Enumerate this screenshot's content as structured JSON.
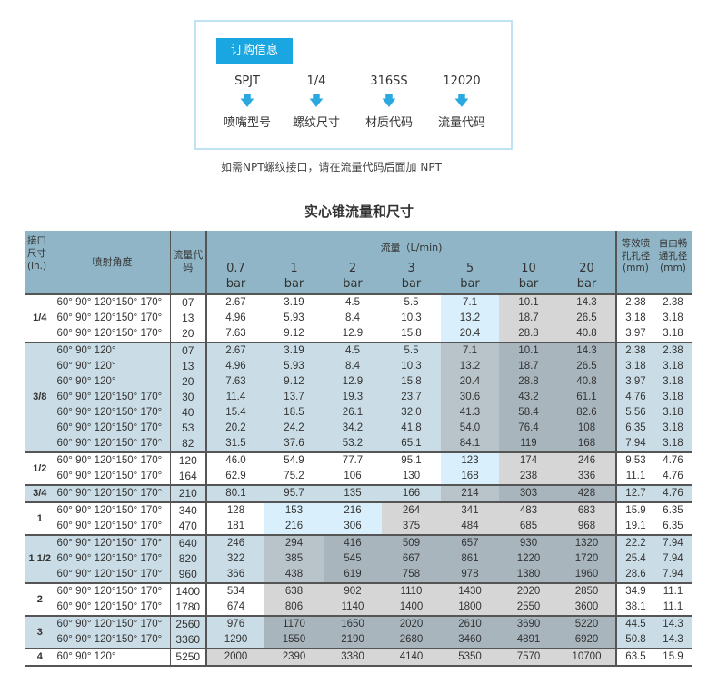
{
  "order": {
    "tag": "订购信息",
    "items": [
      {
        "code": "SPJT",
        "label": "喷嘴型号"
      },
      {
        "code": "1/4",
        "label": "螺纹尺寸"
      },
      {
        "code": "316SS",
        "label": "材质代码"
      },
      {
        "code": "12020",
        "label": "流量代码"
      }
    ],
    "arrow_icon": "arrow-down",
    "note": "如需NPT螺纹接口，请在流量代码后面加 NPT"
  },
  "title": "实心锥流量和尺寸",
  "colors": {
    "header": "#8fb5c6",
    "white": "#ffffff",
    "band": "#cadde6",
    "light_blue": "#d9effb",
    "gray": "#d6d6d6",
    "band_mid": "#b9c3ca",
    "band_dark": "#a8b5bd",
    "accent": "#1aa6e0"
  },
  "table": {
    "headers": {
      "size": "接口尺寸(in.)",
      "angle": "喷射角度",
      "code": "流量代码",
      "flow": "流量（L/min)",
      "pressures": [
        "0.7",
        "1",
        "2",
        "3",
        "5",
        "10",
        "20"
      ],
      "bar": "bar",
      "orifice": "等效喷孔孔径(mm)",
      "free": "自由畅通孔径(mm)"
    },
    "groups": [
      {
        "size": "1/4",
        "band": false,
        "shade": [
          "white",
          "white",
          "white",
          "white",
          "light_blue",
          "gray",
          "gray"
        ],
        "rows": [
          {
            "angle": "60° 90° 120°150° 170°",
            "code": "07",
            "flows": [
              "2.67",
              "3.19",
              "4.5",
              "5.5",
              "7.1",
              "10.1",
              "14.3"
            ],
            "orifice": "2.38",
            "free": "2.38"
          },
          {
            "angle": "60° 90° 120°150° 170°",
            "code": "13",
            "flows": [
              "4.96",
              "5.93",
              "8.4",
              "10.3",
              "13.2",
              "18.7",
              "26.5"
            ],
            "orifice": "3.18",
            "free": "3.18"
          },
          {
            "angle": "60° 90° 120°150° 170°",
            "code": "20",
            "flows": [
              "7.63",
              "9.12",
              "12.9",
              "15.8",
              "20.4",
              "28.8",
              "40.8"
            ],
            "orifice": "3.97",
            "free": "3.18"
          }
        ]
      },
      {
        "size": "3/8",
        "band": true,
        "shade": [
          "band",
          "band",
          "band",
          "band",
          "band_mid",
          "band_dark",
          "band_dark"
        ],
        "rows": [
          {
            "angle": "60°  90° 120°",
            "code": "07",
            "flows": [
              "2.67",
              "3.19",
              "4.5",
              "5.5",
              "7.1",
              "10.1",
              "14.3"
            ],
            "orifice": "2.38",
            "free": "2.38"
          },
          {
            "angle": "60°  90° 120°",
            "code": "13",
            "flows": [
              "4.96",
              "5.93",
              "8.4",
              "10.3",
              "13.2",
              "18.7",
              "26.5"
            ],
            "orifice": "3.18",
            "free": "3.18"
          },
          {
            "angle": "60°  90° 120°",
            "code": "20",
            "flows": [
              "7.63",
              "9.12",
              "12.9",
              "15.8",
              "20.4",
              "28.8",
              "40.8"
            ],
            "orifice": "3.97",
            "free": "3.18"
          },
          {
            "angle": "60° 90° 120°150° 170°",
            "code": "30",
            "flows": [
              "11.4",
              "13.7",
              "19.3",
              "23.7",
              "30.6",
              "43.2",
              "61.1"
            ],
            "orifice": "4.76",
            "free": "3.18"
          },
          {
            "angle": "60° 90° 120°150° 170°",
            "code": "40",
            "flows": [
              "15.4",
              "18.5",
              "26.1",
              "32.0",
              "41.3",
              "58.4",
              "82.6"
            ],
            "orifice": "5.56",
            "free": "3.18"
          },
          {
            "angle": "60° 90° 120°150° 170°",
            "code": "53",
            "flows": [
              "20.2",
              "24.2",
              "34.2",
              "41.8",
              "54.0",
              "76.4",
              "108"
            ],
            "orifice": "6.35",
            "free": "3.18"
          },
          {
            "angle": "60° 90° 120°150° 170°",
            "code": "82",
            "flows": [
              "31.5",
              "37.6",
              "53.2",
              "65.1",
              "84.1",
              "119",
              "168"
            ],
            "orifice": "7.94",
            "free": "3.18"
          }
        ]
      },
      {
        "size": "1/2",
        "band": false,
        "shade": [
          "white",
          "white",
          "white",
          "white",
          "light_blue",
          "gray",
          "gray"
        ],
        "rows": [
          {
            "angle": "60° 90° 120°150° 170°",
            "code": "120",
            "flows": [
              "46.0",
              "54.9",
              "77.7",
              "95.1",
              "123",
              "174",
              "246"
            ],
            "orifice": "9.53",
            "free": "4.76"
          },
          {
            "angle": "60° 90° 120°150° 170°",
            "code": "164",
            "flows": [
              "62.9",
              "75.2",
              "106",
              "130",
              "168",
              "238",
              "336"
            ],
            "orifice": "11.1",
            "free": "4.76"
          }
        ]
      },
      {
        "size": "3/4",
        "band": true,
        "shade": [
          "band",
          "band",
          "band",
          "band",
          "band_mid",
          "band_dark",
          "band_dark"
        ],
        "rows": [
          {
            "angle": "60° 90° 120°150° 170°",
            "code": "210",
            "flows": [
              "80.1",
              "95.7",
              "135",
              "166",
              "214",
              "303",
              "428"
            ],
            "orifice": "12.7",
            "free": "4.76"
          }
        ]
      },
      {
        "size": "1",
        "band": false,
        "shade": [
          "white",
          "light_blue",
          "light_blue",
          "gray",
          "gray",
          "gray",
          "gray"
        ],
        "rows": [
          {
            "angle": "60° 90° 120°150° 170°",
            "code": "340",
            "flows": [
              "128",
              "153",
              "216",
              "264",
              "341",
              "483",
              "683"
            ],
            "orifice": "15.9",
            "free": "6.35"
          },
          {
            "angle": "60° 90° 120°150° 170°",
            "code": "470",
            "flows": [
              "181",
              "216",
              "306",
              "375",
              "484",
              "685",
              "968"
            ],
            "orifice": "19.1",
            "free": "6.35"
          }
        ]
      },
      {
        "size": "1 1/2",
        "band": true,
        "shade": [
          "band",
          "band_mid",
          "band_dark",
          "band_dark",
          "band_dark",
          "band_dark",
          "band_dark"
        ],
        "rows": [
          {
            "angle": "60° 90° 120°150° 170°",
            "code": "640",
            "flows": [
              "246",
              "294",
              "416",
              "509",
              "657",
              "930",
              "1320"
            ],
            "orifice": "22.2",
            "free": "7.94"
          },
          {
            "angle": "60° 90° 120°150° 170°",
            "code": "820",
            "flows": [
              "322",
              "385",
              "545",
              "667",
              "861",
              "1220",
              "1720"
            ],
            "orifice": "25.4",
            "free": "7.94"
          },
          {
            "angle": "60° 90° 120°150° 170°",
            "code": "960",
            "flows": [
              "366",
              "438",
              "619",
              "758",
              "978",
              "1380",
              "1960"
            ],
            "orifice": "28.6",
            "free": "7.94"
          }
        ]
      },
      {
        "size": "2",
        "band": false,
        "shade": [
          "white",
          "gray",
          "gray",
          "gray",
          "gray",
          "gray",
          "gray"
        ],
        "rows": [
          {
            "angle": "60° 90° 120°150° 170°",
            "code": "1400",
            "flows": [
              "534",
              "638",
              "902",
              "1110",
              "1430",
              "2020",
              "2850"
            ],
            "orifice": "34.9",
            "free": "11.1"
          },
          {
            "angle": "60° 90° 120°150° 170°",
            "code": "1780",
            "flows": [
              "674",
              "806",
              "1140",
              "1400",
              "1800",
              "2550",
              "3600"
            ],
            "orifice": "38.1",
            "free": "11.1"
          }
        ]
      },
      {
        "size": "3",
        "band": true,
        "shade": [
          "band",
          "band_dark",
          "band_dark",
          "band_dark",
          "band_dark",
          "band_dark",
          "band_dark"
        ],
        "rows": [
          {
            "angle": "60° 90° 120°150° 170°",
            "code": "2560",
            "flows": [
              "976",
              "1170",
              "1650",
              "2020",
              "2610",
              "3690",
              "5220"
            ],
            "orifice": "44.5",
            "free": "14.3"
          },
          {
            "angle": "60° 90° 120°150° 170°",
            "code": "3360",
            "flows": [
              "1290",
              "1550",
              "2190",
              "2680",
              "3460",
              "4891",
              "6920"
            ],
            "orifice": "50.8",
            "free": "14.3"
          }
        ]
      },
      {
        "size": "4",
        "band": false,
        "shade": [
          "gray",
          "gray",
          "gray",
          "gray",
          "gray",
          "gray",
          "gray"
        ],
        "rows": [
          {
            "angle": "60° 90° 120°",
            "code": "5250",
            "flows": [
              "2000",
              "2390",
              "3380",
              "4140",
              "5350",
              "7570",
              "10700"
            ],
            "orifice": "63.5",
            "free": "15.9"
          }
        ]
      }
    ]
  }
}
